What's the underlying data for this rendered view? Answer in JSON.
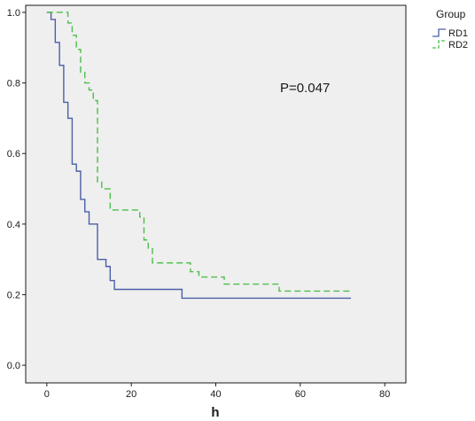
{
  "chart_data": {
    "type": "line",
    "step": true,
    "xlabel": "h",
    "ylabel": "",
    "xlim": [
      -5,
      85
    ],
    "ylim": [
      -0.05,
      1.02
    ],
    "xticks": [
      0,
      20,
      40,
      60,
      80
    ],
    "yticks": [
      0.0,
      0.2,
      0.4,
      0.6,
      0.8,
      1.0
    ],
    "xtick_labels": [
      "0",
      "20",
      "40",
      "60",
      "80"
    ],
    "ytick_labels": [
      "0.0",
      "0.2",
      "0.4",
      "0.6",
      "0.8",
      "1.0"
    ],
    "grid": false,
    "legend": {
      "title": "Group",
      "placement": "outside-top-right"
    },
    "annotation": "P=0.047",
    "series": [
      {
        "name": "RD1",
        "color": "#4a5fa8",
        "dash": "solid",
        "x": [
          0,
          1,
          2,
          3,
          4,
          5,
          6,
          7,
          8,
          9,
          10,
          12,
          14,
          15,
          16,
          32,
          72
        ],
        "y": [
          1.0,
          0.98,
          0.915,
          0.85,
          0.745,
          0.7,
          0.57,
          0.55,
          0.47,
          0.435,
          0.4,
          0.3,
          0.28,
          0.24,
          0.215,
          0.19,
          0.19
        ]
      },
      {
        "name": "RD2",
        "color": "#4cbe4c",
        "dash": "dashed",
        "x": [
          0,
          5,
          6,
          7,
          8,
          9,
          10,
          11,
          12,
          13,
          15,
          22,
          23,
          24,
          25,
          34,
          36,
          42,
          55,
          72
        ],
        "y": [
          1.0,
          0.97,
          0.935,
          0.895,
          0.83,
          0.8,
          0.78,
          0.75,
          0.52,
          0.5,
          0.44,
          0.42,
          0.355,
          0.33,
          0.29,
          0.265,
          0.25,
          0.23,
          0.21,
          0.21
        ]
      }
    ]
  }
}
